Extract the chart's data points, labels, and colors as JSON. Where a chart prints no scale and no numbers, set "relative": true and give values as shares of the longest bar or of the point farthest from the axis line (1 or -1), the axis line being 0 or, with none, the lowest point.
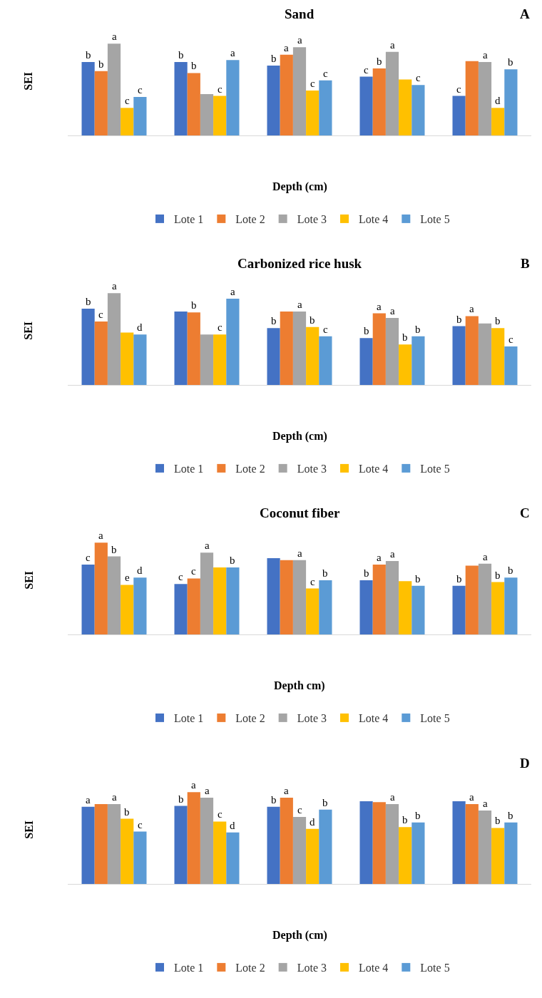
{
  "chart_data": [
    {
      "type": "bar",
      "title": "Sand",
      "xlabel": "Depth (cm)",
      "ylabel": "SEI",
      "categories": [
        null,
        null,
        null,
        null,
        null
      ],
      "relative": true,
      "legend": "bottom",
      "series": [
        {
          "name": "Lote 1",
          "color": "#4472c4",
          "values": [
            0.8,
            0.8,
            0.76,
            0.64,
            0.43
          ]
        },
        {
          "name": "Lote 2",
          "color": "#ed7d31",
          "values": [
            0.7,
            0.68,
            0.88,
            0.73,
            0.81
          ]
        },
        {
          "name": "Lote 3",
          "color": "#a5a5a5",
          "values": [
            1,
            0.45,
            0.96,
            0.91,
            0.8
          ]
        },
        {
          "name": "Lote 4",
          "color": "#ffc000",
          "values": [
            0.3,
            0.43,
            0.49,
            0.61,
            0.3
          ]
        },
        {
          "name": "Lote 5",
          "color": "#5b9bd5",
          "values": [
            0.42,
            0.82,
            0.6,
            0.55,
            0.72
          ]
        }
      ],
      "annotations": [
        "A",
        {
          "text": "b",
          "y": 0.8
        },
        {
          "text": "b",
          "y": 0.8
        },
        {
          "text": "b",
          "y": 0.76
        },
        {
          "text": "c",
          "y": 0.64
        },
        {
          "text": "c",
          "y": 0.43
        },
        {
          "text": "b",
          "y": 0.7
        },
        {
          "text": "b",
          "y": 0.68
        },
        {
          "text": "a",
          "y": 0.88
        },
        {
          "text": "b",
          "y": 0.73
        },
        {
          "text": "a",
          "y": 1
        },
        {
          "text": "a",
          "y": 0.96
        },
        {
          "text": "a",
          "y": 0.91
        },
        {
          "text": "a",
          "y": 0.8
        },
        {
          "text": "c",
          "y": 0.3
        },
        {
          "text": "c",
          "y": 0.43
        },
        {
          "text": "c",
          "y": 0.49
        },
        {
          "text": "d",
          "y": 0.3
        },
        {
          "text": "c",
          "y": 0.42
        },
        {
          "text": "a",
          "y": 0.82
        },
        {
          "text": "c",
          "y": 0.6
        },
        {
          "text": "c",
          "y": 0.55
        },
        {
          "text": "b",
          "y": 0.72
        }
      ]
    },
    {
      "type": "bar",
      "title": "Carbonized rice husk",
      "xlabel": "Depth (cm)",
      "ylabel": "SEI",
      "categories": [
        null,
        null,
        null,
        null,
        null
      ],
      "relative": true,
      "legend": "bottom",
      "series": [
        {
          "name": "Lote 1",
          "color": "#4472c4",
          "values": [
            0.83,
            0.8,
            0.62,
            0.51,
            0.64
          ]
        },
        {
          "name": "Lote 2",
          "color": "#ed7d31",
          "values": [
            0.69,
            0.79,
            0.8,
            0.78,
            0.75
          ]
        },
        {
          "name": "Lote 3",
          "color": "#a5a5a5",
          "values": [
            1,
            0.55,
            0.8,
            0.73,
            0.67
          ]
        },
        {
          "name": "Lote 4",
          "color": "#ffc000",
          "values": [
            0.57,
            0.55,
            0.63,
            0.44,
            0.62
          ]
        },
        {
          "name": "Lote 5",
          "color": "#5b9bd5",
          "values": [
            0.55,
            0.94,
            0.53,
            0.53,
            0.42
          ]
        }
      ],
      "annotations": [
        "B",
        {
          "text": "b",
          "y": 0.83
        },
        {
          "text": "b",
          "y": 0.62
        },
        {
          "text": "b",
          "y": 0.51
        },
        {
          "text": "b",
          "y": 0.64
        },
        {
          "text": "c",
          "y": 0.69
        },
        {
          "text": "b",
          "y": 0.79
        },
        {
          "text": "a",
          "y": 0.78
        },
        {
          "text": "a",
          "y": 0.75
        },
        {
          "text": "a",
          "y": 1
        },
        {
          "text": "a",
          "y": 0.8
        },
        {
          "text": "a",
          "y": 0.73
        },
        {
          "text": "c",
          "y": 0.55
        },
        {
          "text": "b",
          "y": 0.63
        },
        {
          "text": "b",
          "y": 0.44
        },
        {
          "text": "b",
          "y": 0.62
        },
        {
          "text": "d",
          "y": 0.55
        },
        {
          "text": "a",
          "y": 0.94
        },
        {
          "text": "c",
          "y": 0.53
        },
        {
          "text": "b",
          "y": 0.53
        },
        {
          "text": "c",
          "y": 0.42
        }
      ]
    },
    {
      "type": "bar",
      "title": "Coconut fiber",
      "xlabel": "Depth cm)",
      "ylabel": "SEI",
      "categories": [
        null,
        null,
        null,
        null,
        null
      ],
      "relative": true,
      "legend": "bottom",
      "series": [
        {
          "name": "Lote 1",
          "color": "#4472c4",
          "values": [
            0.76,
            0.55,
            0.83,
            0.59,
            0.53
          ]
        },
        {
          "name": "Lote 2",
          "color": "#ed7d31",
          "values": [
            1,
            0.61,
            0.81,
            0.76,
            0.75
          ]
        },
        {
          "name": "Lote 3",
          "color": "#a5a5a5",
          "values": [
            0.85,
            0.89,
            0.81,
            0.8,
            0.77
          ]
        },
        {
          "name": "Lote 4",
          "color": "#ffc000",
          "values": [
            0.54,
            0.73,
            0.5,
            0.58,
            0.57
          ]
        },
        {
          "name": "Lote 5",
          "color": "#5b9bd5",
          "values": [
            0.62,
            0.73,
            0.59,
            0.53,
            0.62
          ]
        }
      ],
      "annotations": [
        "C",
        {
          "text": "c",
          "y": 0.76
        },
        {
          "text": "c",
          "y": 0.55
        },
        {
          "text": "b",
          "y": 0.59
        },
        {
          "text": "b",
          "y": 0.53
        },
        {
          "text": "a",
          "y": 1
        },
        {
          "text": "c",
          "y": 0.61
        },
        {
          "text": "a",
          "y": 0.76
        },
        {
          "text": "b",
          "y": 0.85
        },
        {
          "text": "a",
          "y": 0.89
        },
        {
          "text": "a",
          "y": 0.81
        },
        {
          "text": "a",
          "y": 0.8
        },
        {
          "text": "a",
          "y": 0.77
        },
        {
          "text": "e",
          "y": 0.54
        },
        {
          "text": "c",
          "y": 0.5
        },
        {
          "text": "b",
          "y": 0.57
        },
        {
          "text": "d",
          "y": 0.62
        },
        {
          "text": "b",
          "y": 0.73
        },
        {
          "text": "b",
          "y": 0.59
        },
        {
          "text": "b",
          "y": 0.53
        },
        {
          "text": "b",
          "y": 0.62
        }
      ]
    },
    {
      "type": "bar",
      "xlabel": "Depth (cm)",
      "ylabel": "SEI",
      "categories": [
        null,
        null,
        null,
        null,
        null
      ],
      "relative": true,
      "legend": "bottom",
      "series": [
        {
          "name": "Lote 1",
          "color": "#4472c4",
          "values": [
            0.84,
            0.85,
            0.84,
            0.9,
            0.9
          ]
        },
        {
          "name": "Lote 2",
          "color": "#ed7d31",
          "values": [
            0.87,
            1,
            0.94,
            0.89,
            0.87
          ]
        },
        {
          "name": "Lote 3",
          "color": "#a5a5a5",
          "values": [
            0.87,
            0.94,
            0.73,
            0.87,
            0.8
          ]
        },
        {
          "name": "Lote 4",
          "color": "#ffc000",
          "values": [
            0.71,
            0.68,
            0.6,
            0.62,
            0.61
          ]
        },
        {
          "name": "Lote 5",
          "color": "#5b9bd5",
          "values": [
            0.57,
            0.56,
            0.81,
            0.67,
            0.67
          ]
        }
      ],
      "annotations": [
        "D",
        {
          "text": "a",
          "y": 0.84
        },
        {
          "text": "b",
          "y": 0.85
        },
        {
          "text": "b",
          "y": 0.84
        },
        {
          "text": "a",
          "y": 1
        },
        {
          "text": "a",
          "y": 0.94
        },
        {
          "text": "a",
          "y": 0.87
        },
        {
          "text": "a",
          "y": 0.87
        },
        {
          "text": "a",
          "y": 0.94
        },
        {
          "text": "c",
          "y": 0.73
        },
        {
          "text": "a",
          "y": 0.87
        },
        {
          "text": "a",
          "y": 0.8
        },
        {
          "text": "b",
          "y": 0.71
        },
        {
          "text": "c",
          "y": 0.68
        },
        {
          "text": "d",
          "y": 0.6
        },
        {
          "text": "b",
          "y": 0.62
        },
        {
          "text": "b",
          "y": 0.61
        },
        {
          "text": "c",
          "y": 0.57
        },
        {
          "text": "d",
          "y": 0.56
        },
        {
          "text": "b",
          "y": 0.81
        },
        {
          "text": "b",
          "y": 0.67
        },
        {
          "text": "b",
          "y": 0.67
        }
      ]
    }
  ]
}
